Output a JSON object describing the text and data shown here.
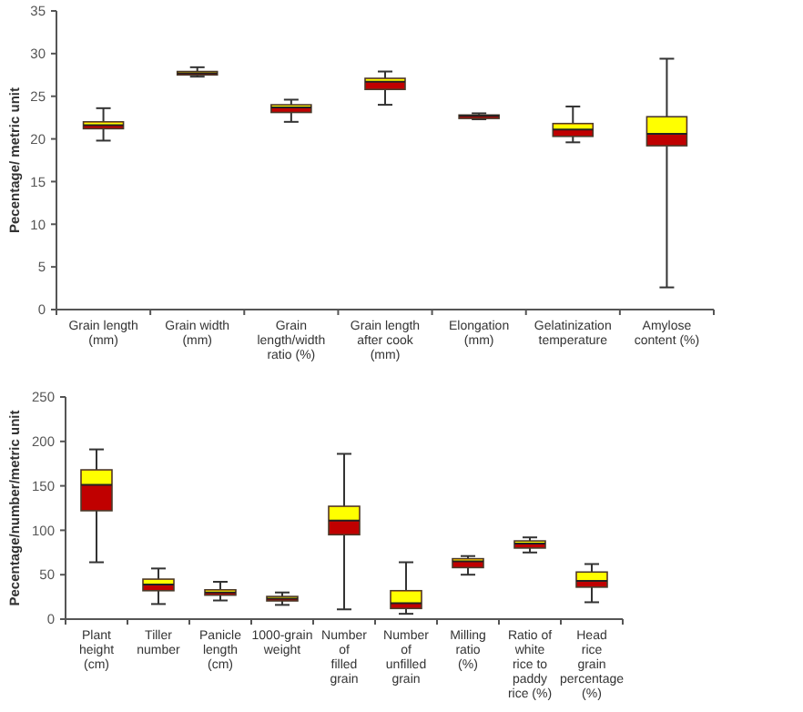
{
  "chart_data": [
    {
      "type": "box",
      "ylabel": "Pecentage/ metric unit",
      "categories": [
        "Grain length (mm)",
        "Grain width (mm)",
        "Grain length/width ratio (%)",
        "Grain length after cook (mm)",
        "Elongation (mm)",
        "Gelatinization temperature",
        "Amylose content (%)"
      ],
      "colors": [
        "#c00000",
        "#c00000",
        "#c00000",
        "#c00000",
        "#c00000",
        "#c00000",
        "#c00000"
      ],
      "ylim": [
        0,
        35
      ],
      "yticks": [
        0,
        5,
        10,
        15,
        20,
        25,
        30,
        35
      ],
      "grid": false,
      "boxes": [
        {
          "low": 19.8,
          "q1": 21.2,
          "median": 21.6,
          "q3": 22.0,
          "high": 23.6
        },
        {
          "low": 27.3,
          "q1": 27.5,
          "median": 27.7,
          "q3": 27.9,
          "high": 28.4
        },
        {
          "low": 22.0,
          "q1": 23.1,
          "median": 23.7,
          "q3": 24.0,
          "high": 24.6
        },
        {
          "low": 24.0,
          "q1": 25.8,
          "median": 26.7,
          "q3": 27.1,
          "high": 27.9
        },
        {
          "low": 22.3,
          "q1": 22.4,
          "median": 22.7,
          "q3": 22.8,
          "high": 23.0
        },
        {
          "low": 19.6,
          "q1": 20.3,
          "median": 21.1,
          "q3": 21.8,
          "high": 23.8
        },
        {
          "low": 2.6,
          "q1": 19.2,
          "median": 20.6,
          "q3": 22.6,
          "high": 29.4
        }
      ]
    },
    {
      "type": "box",
      "ylabel": "Pecentage/number/metric unit",
      "categories": [
        "Plant height (cm)",
        "Tiller number",
        "Panicle length (cm)",
        "1000-grain weight",
        "Number of filled grain",
        "Number of unfilled grain",
        "Milling ratio (%)",
        "Ratio of white rice to paddy rice (%)",
        "Head rice grain percentage (%)"
      ],
      "colors": [
        "#c00000",
        "#c00000",
        "#c00000",
        "#c00000",
        "#c00000",
        "#c00000",
        "#c00000",
        "#c00000",
        "#c00000"
      ],
      "ylim": [
        0,
        250
      ],
      "yticks": [
        0,
        50,
        100,
        150,
        200,
        250
      ],
      "grid": false,
      "boxes": [
        {
          "low": 64,
          "q1": 122,
          "median": 151,
          "q3": 168,
          "high": 191
        },
        {
          "low": 17,
          "q1": 32,
          "median": 39,
          "q3": 45,
          "high": 57
        },
        {
          "low": 21,
          "q1": 27,
          "median": 30,
          "q3": 33,
          "high": 42
        },
        {
          "low": 16,
          "q1": 20.5,
          "median": 23,
          "q3": 25.5,
          "high": 30
        },
        {
          "low": 11,
          "q1": 95,
          "median": 111,
          "q3": 127,
          "high": 186
        },
        {
          "low": 6,
          "q1": 12,
          "median": 18,
          "q3": 32,
          "high": 64
        },
        {
          "low": 50,
          "q1": 58,
          "median": 65,
          "q3": 68,
          "high": 71
        },
        {
          "low": 75,
          "q1": 80,
          "median": 85,
          "q3": 88,
          "high": 92
        },
        {
          "low": 19,
          "q1": 36,
          "median": 43,
          "q3": 53,
          "high": 62
        }
      ]
    }
  ]
}
